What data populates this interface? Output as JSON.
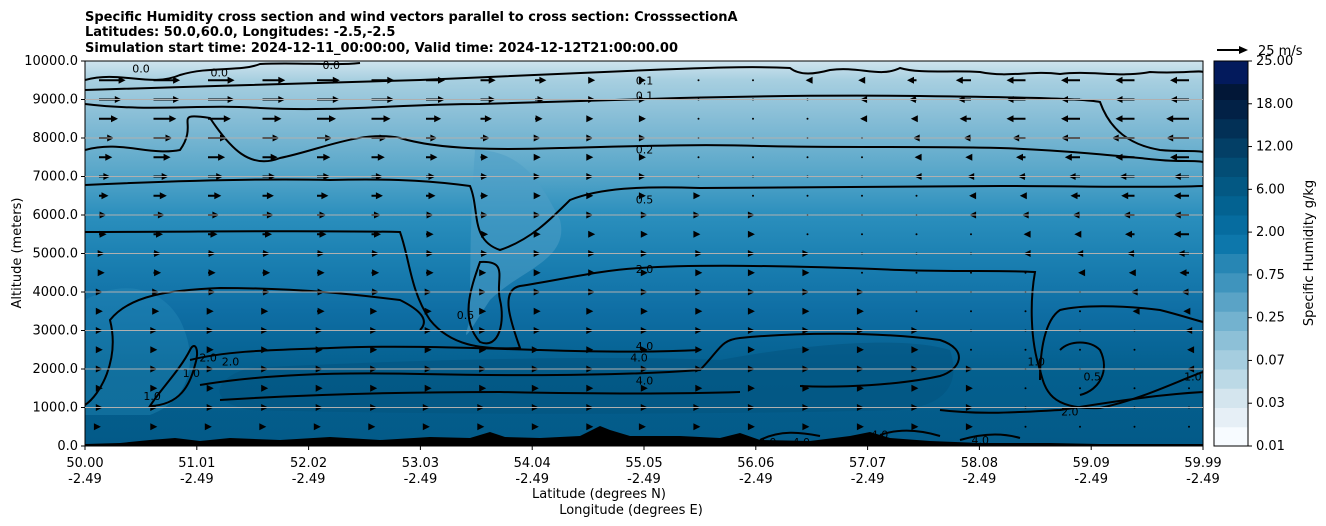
{
  "chart_data": {
    "type": "contour",
    "title_lines": [
      "Specific Humidity cross section and wind vectors parallel to cross section: CrosssectionA",
      "Latitudes: 50.0,60.0, Longitudes: -2.5,-2.5",
      "Simulation start time: 2024-12-11_00:00:00, Valid time: 2024-12-12T21:00:00.00"
    ],
    "ylabel": "Altitude (meters)",
    "xlabel_lines": [
      "Latitude (degrees N)",
      "Longitude (degrees E)"
    ],
    "ylim": [
      0,
      10000
    ],
    "xlim": [
      50.0,
      59.99
    ],
    "y_ticks": [
      "0.0",
      "1000.0",
      "2000.0",
      "3000.0",
      "4000.0",
      "5000.0",
      "6000.0",
      "7000.0",
      "8000.0",
      "9000.0",
      "10000.0"
    ],
    "x_ticks": [
      {
        "lat": "50.00",
        "lon": "-2.49"
      },
      {
        "lat": "51.01",
        "lon": "-2.49"
      },
      {
        "lat": "52.02",
        "lon": "-2.49"
      },
      {
        "lat": "53.03",
        "lon": "-2.49"
      },
      {
        "lat": "54.04",
        "lon": "-2.49"
      },
      {
        "lat": "55.05",
        "lon": "-2.49"
      },
      {
        "lat": "56.06",
        "lon": "-2.49"
      },
      {
        "lat": "57.07",
        "lon": "-2.49"
      },
      {
        "lat": "58.08",
        "lon": "-2.49"
      },
      {
        "lat": "59.09",
        "lon": "-2.49"
      },
      {
        "lat": "59.99",
        "lon": "-2.49"
      }
    ],
    "colorbar": {
      "label": "Specific Humidity g/kg",
      "tick_labels": [
        "0.01",
        "0.03",
        "0.07",
        "0.25",
        "0.75",
        "2.00",
        "6.00",
        "12.00",
        "18.00",
        "25.00"
      ],
      "colors": [
        "#f7fbff",
        "#e6eff6",
        "#d4e5ee",
        "#bcd9e6",
        "#a5cddf",
        "#8dc0d7",
        "#73b2cf",
        "#5aa3c6",
        "#3f94bd",
        "#2786b4",
        "#0d77ab",
        "#066c9f",
        "#036291",
        "#035883",
        "#034d75",
        "#033f66",
        "#023056",
        "#022146",
        "#021737",
        "#021029"
      ],
      "top_color": "#031a5c"
    },
    "quiver_key": "25 m/s",
    "contour_labels": [
      {
        "text": "0.0",
        "x": 50.5,
        "y": 9800
      },
      {
        "text": "0.0",
        "x": 51.2,
        "y": 9700
      },
      {
        "text": "0.0",
        "x": 52.2,
        "y": 9900
      },
      {
        "text": "0.1",
        "x": 55.0,
        "y": 9500
      },
      {
        "text": "0.1",
        "x": 55.0,
        "y": 9100
      },
      {
        "text": "0.2",
        "x": 55.0,
        "y": 7700
      },
      {
        "text": "0.5",
        "x": 55.0,
        "y": 6400
      },
      {
        "text": "2.0",
        "x": 55.0,
        "y": 4600
      },
      {
        "text": "0.5",
        "x": 53.4,
        "y": 3400
      },
      {
        "text": "4.0",
        "x": 55.0,
        "y": 2600
      },
      {
        "text": "4.0",
        "x": 54.95,
        "y": 2300
      },
      {
        "text": "4.0",
        "x": 55.0,
        "y": 1700
      },
      {
        "text": "2.0",
        "x": 51.1,
        "y": 2300
      },
      {
        "text": "2.0",
        "x": 51.3,
        "y": 2200
      },
      {
        "text": "1.0",
        "x": 50.95,
        "y": 1900
      },
      {
        "text": "1.0",
        "x": 50.6,
        "y": 1300
      },
      {
        "text": "1.0",
        "x": 58.5,
        "y": 2200
      },
      {
        "text": "0.5",
        "x": 59.0,
        "y": 1800
      },
      {
        "text": "2.0",
        "x": 58.8,
        "y": 900
      },
      {
        "text": "1.0",
        "x": 59.9,
        "y": 1800
      },
      {
        "text": "4.0",
        "x": 56.1,
        "y": 100
      },
      {
        "text": "4.0",
        "x": 56.4,
        "y": 100
      },
      {
        "text": "4.0",
        "x": 57.1,
        "y": 300
      },
      {
        "text": "4.0",
        "x": 58.0,
        "y": 150
      }
    ],
    "wind_levels": [
      {
        "y": 9500,
        "u": [
          14,
          14,
          14,
          12,
          12,
          12,
          10,
          8,
          6,
          3,
          1,
          0,
          0,
          -1,
          -2,
          -5,
          -8,
          -10,
          -10,
          -10,
          -10
        ]
      },
      {
        "y": 9000,
        "u": [
          12,
          14,
          14,
          12,
          12,
          12,
          10,
          8,
          5,
          3,
          1,
          0,
          0,
          0,
          -1,
          -4,
          -7,
          -10,
          -10,
          -10,
          -10
        ]
      },
      {
        "y": 8500,
        "u": [
          10,
          12,
          12,
          10,
          10,
          10,
          8,
          6,
          4,
          2,
          1,
          0,
          0,
          0,
          -1,
          -3,
          -6,
          -10,
          -10,
          -10,
          -12
        ]
      },
      {
        "y": 8000,
        "u": [
          8,
          10,
          10,
          9,
          8,
          8,
          6,
          5,
          3,
          2,
          1,
          0,
          0,
          0,
          0,
          -2,
          -4,
          -7,
          -10,
          -12,
          -12
        ]
      },
      {
        "y": 7500,
        "u": [
          7,
          9,
          9,
          8,
          7,
          7,
          6,
          4,
          3,
          2,
          1,
          0,
          0,
          0,
          0,
          -1,
          -3,
          -5,
          -8,
          -10,
          -10
        ]
      },
      {
        "y": 7000,
        "u": [
          6,
          8,
          8,
          7,
          7,
          6,
          5,
          4,
          3,
          2,
          1,
          0,
          0,
          0,
          0,
          -1,
          -2,
          -4,
          -6,
          -8,
          -8
        ]
      },
      {
        "y": 6500,
        "u": [
          5,
          7,
          7,
          6,
          6,
          6,
          5,
          4,
          3,
          2,
          1,
          1,
          0,
          0,
          0,
          0,
          -1,
          -3,
          -5,
          -7,
          -8
        ]
      },
      {
        "y": 6000,
        "u": [
          4,
          6,
          6,
          6,
          5,
          5,
          4,
          4,
          3,
          2,
          2,
          1,
          1,
          0,
          0,
          0,
          -1,
          -2,
          -4,
          -6,
          -8
        ]
      },
      {
        "y": 5500,
        "u": [
          4,
          5,
          5,
          5,
          5,
          5,
          4,
          4,
          3,
          3,
          2,
          1,
          1,
          0,
          0,
          0,
          0,
          -1,
          -3,
          -5,
          -8
        ]
      },
      {
        "y": 5000,
        "u": [
          3,
          4,
          4,
          4,
          4,
          4,
          4,
          4,
          3,
          3,
          2,
          2,
          1,
          1,
          0,
          0,
          0,
          -1,
          -2,
          -4,
          -6
        ]
      },
      {
        "y": 4500,
        "u": [
          3,
          4,
          4,
          4,
          4,
          4,
          4,
          3,
          3,
          3,
          2,
          2,
          1,
          1,
          0,
          0,
          0,
          0,
          -1,
          -3,
          -5
        ]
      },
      {
        "y": 4000,
        "u": [
          2,
          3,
          4,
          4,
          4,
          4,
          3,
          3,
          3,
          3,
          2,
          2,
          1,
          1,
          1,
          0,
          0,
          0,
          0,
          -2,
          -4
        ]
      },
      {
        "y": 3500,
        "u": [
          2,
          3,
          3,
          3,
          4,
          3,
          3,
          3,
          3,
          2,
          2,
          2,
          1,
          1,
          1,
          0,
          0,
          0,
          0,
          -1,
          -3
        ]
      },
      {
        "y": 3000,
        "u": [
          2,
          2,
          3,
          3,
          3,
          3,
          3,
          3,
          3,
          2,
          2,
          2,
          1,
          1,
          1,
          1,
          0,
          0,
          0,
          0,
          -2
        ]
      },
      {
        "y": 2500,
        "u": [
          2,
          2,
          3,
          3,
          3,
          3,
          3,
          3,
          2,
          2,
          2,
          2,
          1,
          1,
          1,
          1,
          0,
          0,
          0,
          0,
          -1
        ]
      },
      {
        "y": 2000,
        "u": [
          2,
          2,
          3,
          3,
          3,
          3,
          3,
          3,
          2,
          2,
          2,
          2,
          1,
          1,
          1,
          1,
          1,
          0,
          0,
          0,
          -1
        ]
      },
      {
        "y": 1500,
        "u": [
          2,
          2,
          3,
          3,
          3,
          3,
          3,
          3,
          2,
          2,
          2,
          2,
          1,
          1,
          1,
          1,
          1,
          0,
          0,
          0,
          0
        ]
      },
      {
        "y": 1000,
        "u": [
          2,
          2,
          3,
          3,
          3,
          3,
          2,
          2,
          2,
          2,
          2,
          1,
          1,
          1,
          1,
          1,
          1,
          0,
          0,
          0,
          0
        ]
      },
      {
        "y": 500,
        "u": [
          1,
          2,
          2,
          2,
          2,
          2,
          2,
          2,
          2,
          2,
          1,
          1,
          1,
          1,
          1,
          1,
          1,
          0,
          0,
          0,
          0
        ]
      }
    ]
  }
}
